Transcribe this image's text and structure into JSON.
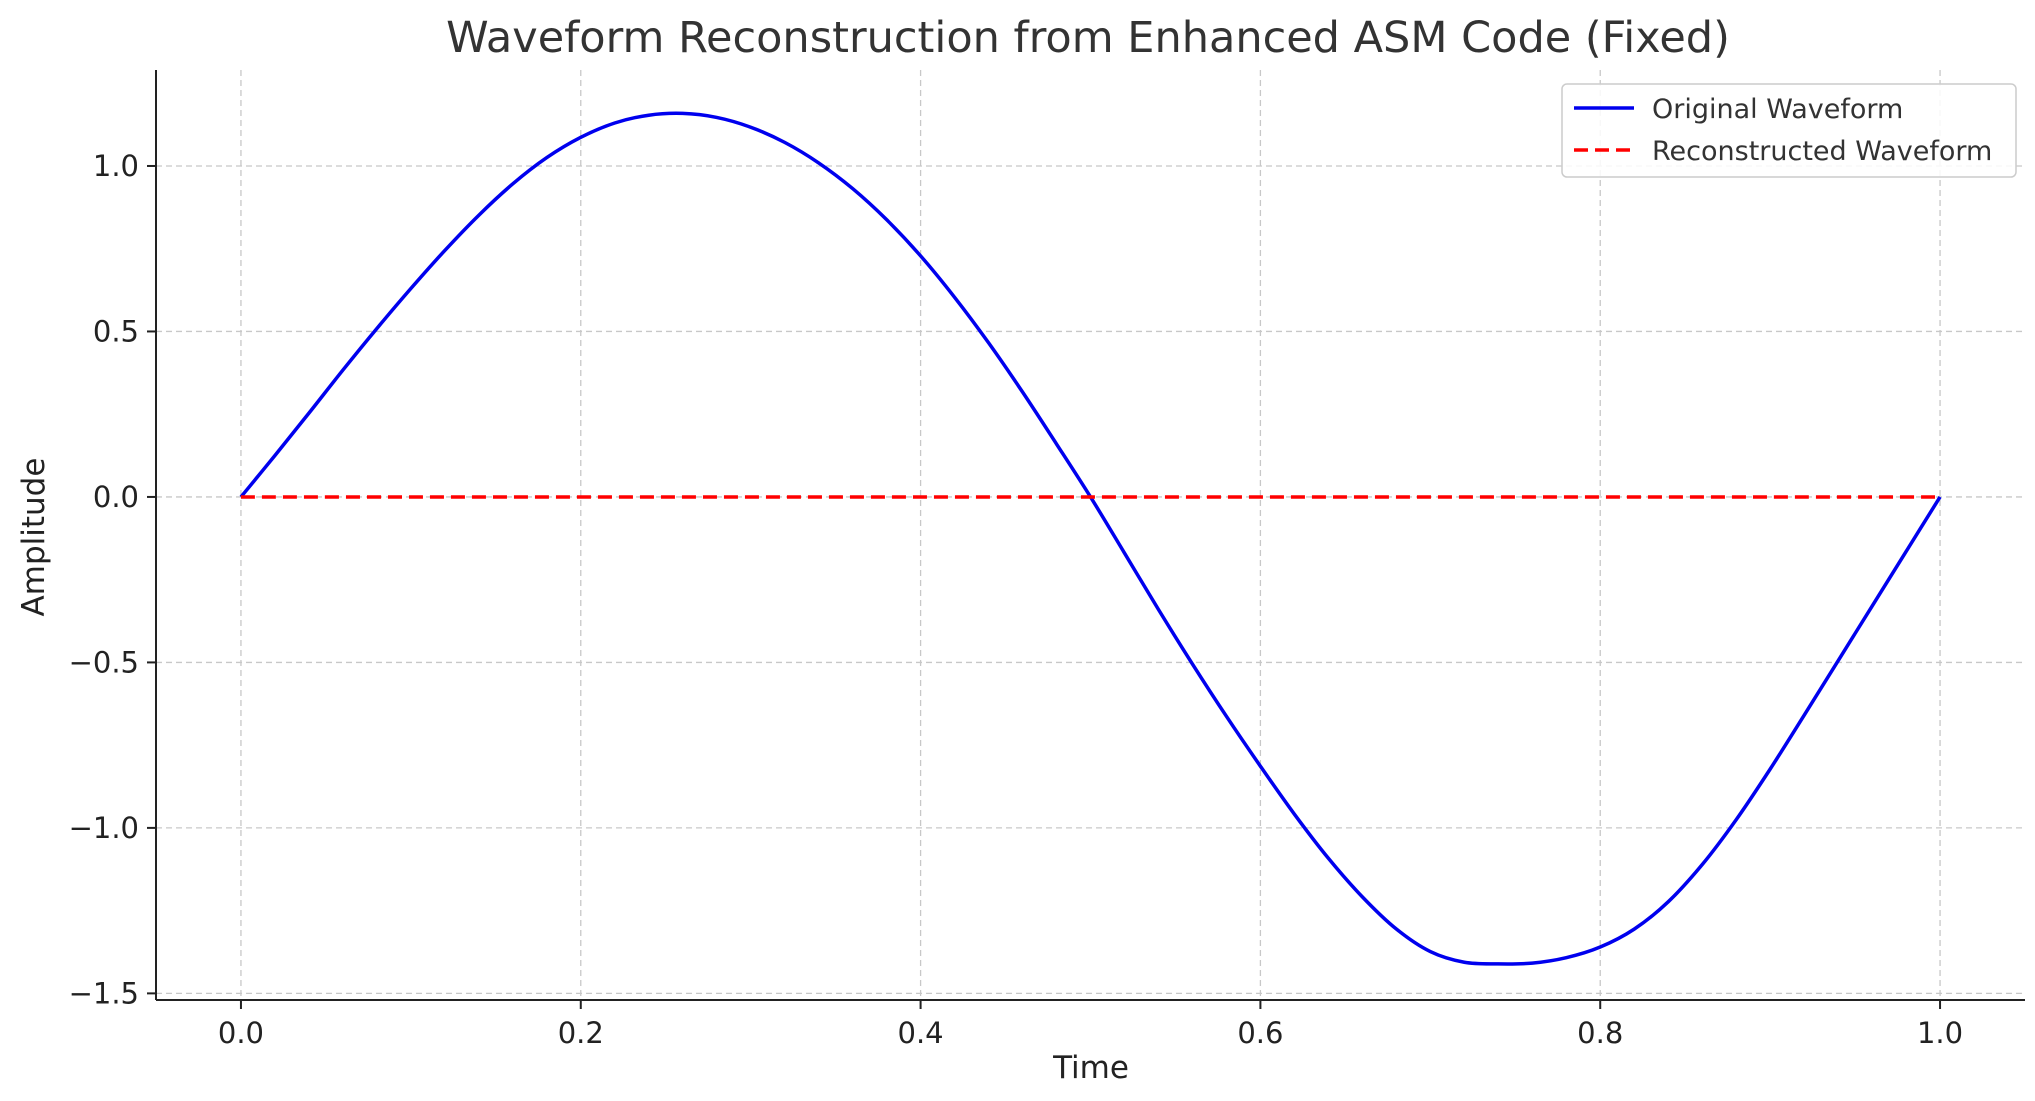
{
  "chart_data": {
    "type": "line",
    "title": "Waveform Reconstruction from Enhanced ASM Code (Fixed)",
    "xlabel": "Time",
    "ylabel": "Amplitude",
    "xlim": [
      -0.05,
      1.05
    ],
    "ylim": [
      -1.52,
      1.29
    ],
    "xticks": [
      0.0,
      0.2,
      0.4,
      0.6,
      0.8,
      1.0
    ],
    "xtick_labels": [
      "0.0",
      "0.2",
      "0.4",
      "0.6",
      "0.8",
      "1.0"
    ],
    "yticks": [
      1.0,
      0.5,
      0.0,
      -0.5,
      -1.0,
      -1.5
    ],
    "ytick_labels": [
      "1.0",
      "0.5",
      "0.0",
      "−0.5",
      "−1.0",
      "−1.5"
    ],
    "grid": true,
    "legend_position": "top-right",
    "series": [
      {
        "name": "Original Waveform",
        "color": "#0000ee",
        "style": "solid",
        "x": [
          0.0,
          0.02,
          0.04,
          0.06,
          0.08,
          0.1,
          0.12,
          0.14,
          0.16,
          0.18,
          0.2,
          0.22,
          0.24,
          0.26,
          0.28,
          0.3,
          0.32,
          0.34,
          0.36,
          0.38,
          0.4,
          0.42,
          0.44,
          0.46,
          0.48,
          0.5,
          0.52,
          0.54,
          0.56,
          0.58,
          0.6,
          0.62,
          0.64,
          0.66,
          0.68,
          0.7,
          0.72,
          0.74,
          0.76,
          0.78,
          0.8,
          0.82,
          0.84,
          0.86,
          0.88,
          0.9,
          0.92,
          0.94,
          0.96,
          0.98,
          1.0
        ],
        "y": [
          0.0,
          0.1253,
          0.2532,
          0.3833,
          0.509,
          0.6297,
          0.7448,
          0.8513,
          0.946,
          1.0253,
          1.0865,
          1.1299,
          1.1534,
          1.1588,
          1.1467,
          1.1171,
          1.0713,
          1.0093,
          0.9317,
          0.8378,
          0.7284,
          0.6033,
          0.4658,
          0.317,
          0.1599,
          0.0,
          -0.1695,
          -0.3402,
          -0.5049,
          -0.6629,
          -0.8136,
          -0.9585,
          -1.0918,
          -1.2084,
          -1.3056,
          -1.3738,
          -1.406,
          -1.4109,
          -1.4086,
          -1.3922,
          -1.36,
          -1.3059,
          -1.2233,
          -1.1111,
          -0.9754,
          -0.8224,
          -0.6599,
          -0.495,
          -0.33,
          -0.165,
          0.0
        ]
      },
      {
        "name": "Reconstructed Waveform",
        "color": "#ff0000",
        "style": "dashed",
        "x": [
          0.0,
          0.1,
          0.2,
          0.3,
          0.4,
          0.5,
          0.6,
          0.7,
          0.8,
          0.9,
          1.0
        ],
        "y": [
          0.0,
          0.0,
          0.0,
          0.0,
          0.0,
          0.0,
          0.0,
          0.0,
          0.0,
          0.0,
          0.0
        ]
      }
    ]
  }
}
